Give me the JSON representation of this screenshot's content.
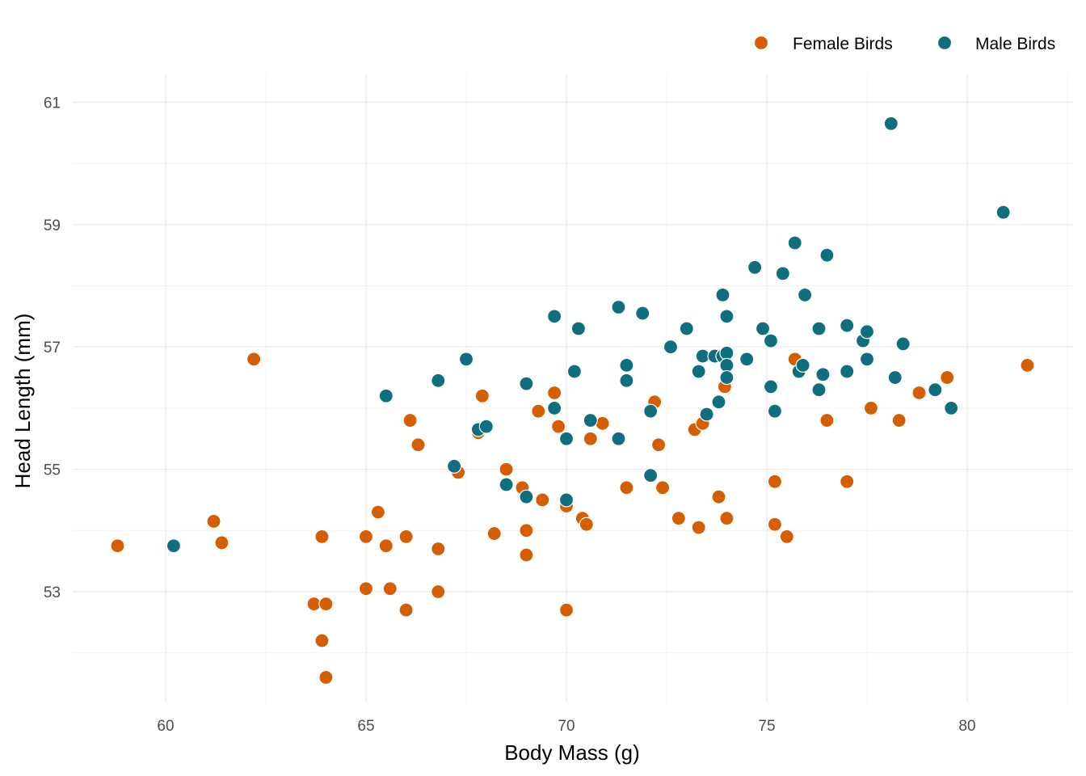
{
  "chart_data": {
    "type": "scatter",
    "xlabel": "Body Mass (g)",
    "ylabel": "Head Length (mm)",
    "xlim": [
      57.7,
      82.5
    ],
    "ylim": [
      51.1,
      61.2
    ],
    "x_ticks": [
      60,
      65,
      70,
      75,
      80
    ],
    "y_ticks": [
      53,
      55,
      57,
      59,
      61
    ],
    "grid": true,
    "legend_position": "top-right",
    "series": [
      {
        "name": "Female Birds",
        "color": "#D55E00",
        "points": [
          [
            58.8,
            53.75
          ],
          [
            61.2,
            54.15
          ],
          [
            61.4,
            53.8
          ],
          [
            62.2,
            56.8
          ],
          [
            63.7,
            52.8
          ],
          [
            63.9,
            53.9
          ],
          [
            63.9,
            52.2
          ],
          [
            64.0,
            52.8
          ],
          [
            64.0,
            51.6
          ],
          [
            65.0,
            53.9
          ],
          [
            65.0,
            53.05
          ],
          [
            65.3,
            54.3
          ],
          [
            65.5,
            53.75
          ],
          [
            65.6,
            53.05
          ],
          [
            66.0,
            53.9
          ],
          [
            66.0,
            52.7
          ],
          [
            66.1,
            55.8
          ],
          [
            66.3,
            55.4
          ],
          [
            66.8,
            53.7
          ],
          [
            66.8,
            53.0
          ],
          [
            67.3,
            54.95
          ],
          [
            67.8,
            55.6
          ],
          [
            67.9,
            56.2
          ],
          [
            68.2,
            53.95
          ],
          [
            68.5,
            55.0
          ],
          [
            68.9,
            54.7
          ],
          [
            69.0,
            54.0
          ],
          [
            69.0,
            53.6
          ],
          [
            69.3,
            55.95
          ],
          [
            69.4,
            54.5
          ],
          [
            69.7,
            56.25
          ],
          [
            69.8,
            55.7
          ],
          [
            70.0,
            54.4
          ],
          [
            70.0,
            52.7
          ],
          [
            70.4,
            54.2
          ],
          [
            70.5,
            54.1
          ],
          [
            70.6,
            55.5
          ],
          [
            70.9,
            55.75
          ],
          [
            71.5,
            54.7
          ],
          [
            72.2,
            56.1
          ],
          [
            72.3,
            55.4
          ],
          [
            72.4,
            54.7
          ],
          [
            72.8,
            54.2
          ],
          [
            73.2,
            55.65
          ],
          [
            73.3,
            54.05
          ],
          [
            73.4,
            55.75
          ],
          [
            73.8,
            54.55
          ],
          [
            73.95,
            56.35
          ],
          [
            74.0,
            54.2
          ],
          [
            75.2,
            54.8
          ],
          [
            75.2,
            54.1
          ],
          [
            75.5,
            53.9
          ],
          [
            75.7,
            56.8
          ],
          [
            76.5,
            55.8
          ],
          [
            77.0,
            54.8
          ],
          [
            77.6,
            56.0
          ],
          [
            78.3,
            55.8
          ],
          [
            78.8,
            56.25
          ],
          [
            79.5,
            56.5
          ],
          [
            81.5,
            56.7
          ]
        ]
      },
      {
        "name": "Male Birds",
        "color": "#0F6F7F",
        "points": [
          [
            60.2,
            53.75
          ],
          [
            65.5,
            56.2
          ],
          [
            66.8,
            56.45
          ],
          [
            67.2,
            55.05
          ],
          [
            67.5,
            56.8
          ],
          [
            67.8,
            55.65
          ],
          [
            68.0,
            55.7
          ],
          [
            68.5,
            54.75
          ],
          [
            69.0,
            56.4
          ],
          [
            69.0,
            54.55
          ],
          [
            69.7,
            57.5
          ],
          [
            69.7,
            56.0
          ],
          [
            70.0,
            55.5
          ],
          [
            70.0,
            54.5
          ],
          [
            70.2,
            56.6
          ],
          [
            70.3,
            57.3
          ],
          [
            70.6,
            55.8
          ],
          [
            71.3,
            57.65
          ],
          [
            71.3,
            55.5
          ],
          [
            71.5,
            56.7
          ],
          [
            71.5,
            56.45
          ],
          [
            71.9,
            57.55
          ],
          [
            72.1,
            55.95
          ],
          [
            72.1,
            54.9
          ],
          [
            72.6,
            57.0
          ],
          [
            73.0,
            57.3
          ],
          [
            73.3,
            56.6
          ],
          [
            73.4,
            56.85
          ],
          [
            73.5,
            55.9
          ],
          [
            73.7,
            56.85
          ],
          [
            73.8,
            56.1
          ],
          [
            73.9,
            57.85
          ],
          [
            73.9,
            56.85
          ],
          [
            74.0,
            57.5
          ],
          [
            74.0,
            56.9
          ],
          [
            74.0,
            56.7
          ],
          [
            74.0,
            56.5
          ],
          [
            74.5,
            56.8
          ],
          [
            74.7,
            58.3
          ],
          [
            74.9,
            57.3
          ],
          [
            75.1,
            57.1
          ],
          [
            75.1,
            56.35
          ],
          [
            75.2,
            55.95
          ],
          [
            75.4,
            58.2
          ],
          [
            75.7,
            58.7
          ],
          [
            75.8,
            56.6
          ],
          [
            75.9,
            56.7
          ],
          [
            75.95,
            57.85
          ],
          [
            76.3,
            57.3
          ],
          [
            76.3,
            56.3
          ],
          [
            76.4,
            56.55
          ],
          [
            76.5,
            58.5
          ],
          [
            77.0,
            57.35
          ],
          [
            77.0,
            56.6
          ],
          [
            77.4,
            57.1
          ],
          [
            77.5,
            57.25
          ],
          [
            77.5,
            56.8
          ],
          [
            78.1,
            60.65
          ],
          [
            78.2,
            56.5
          ],
          [
            78.4,
            57.05
          ],
          [
            79.2,
            56.3
          ],
          [
            79.6,
            56.0
          ],
          [
            80.9,
            59.2
          ]
        ]
      }
    ]
  }
}
